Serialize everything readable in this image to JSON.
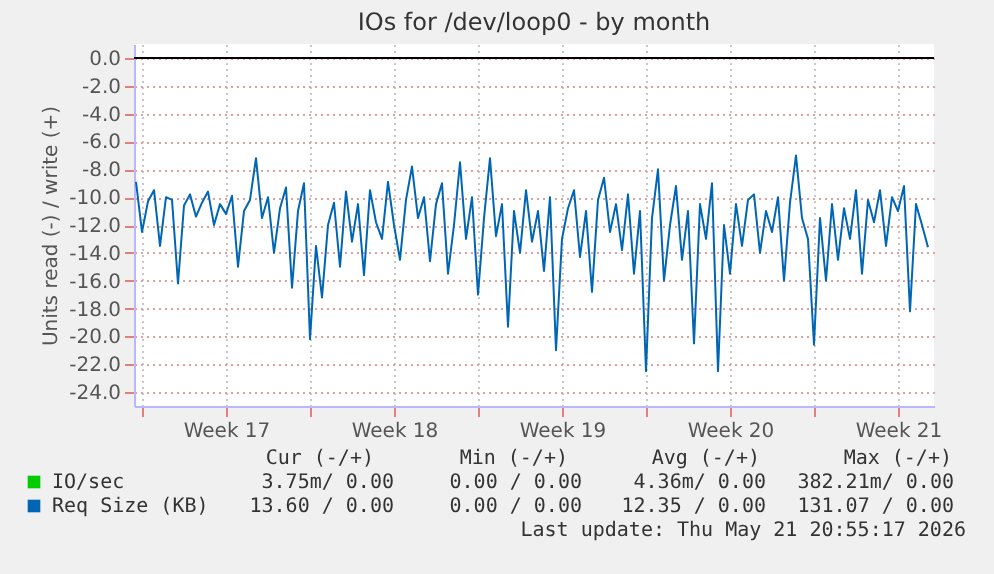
{
  "chart_data": {
    "type": "line",
    "title": "IOs for /dev/loop0 - by month",
    "ylabel": "Units read (-) / write (+)",
    "x": [
      "2026-04-18T15:00",
      "2026-04-18T21:00",
      "2026-04-19T03:00",
      "2026-04-19T09:00",
      "2026-04-19T15:00",
      "2026-04-19T21:00",
      "2026-04-20T03:00",
      "2026-04-20T09:00",
      "2026-04-20T15:00",
      "2026-04-20T21:00",
      "2026-04-21T03:00",
      "2026-04-21T09:00",
      "2026-04-21T15:00",
      "2026-04-21T21:00",
      "2026-04-22T03:00",
      "2026-04-22T09:00",
      "2026-04-22T15:00",
      "2026-04-22T21:00",
      "2026-04-23T03:00",
      "2026-04-23T09:00",
      "2026-04-23T15:00",
      "2026-04-23T21:00",
      "2026-04-24T03:00",
      "2026-04-24T09:00",
      "2026-04-24T15:00",
      "2026-04-24T21:00",
      "2026-04-25T03:00",
      "2026-04-25T09:00",
      "2026-04-25T15:00",
      "2026-04-25T21:00",
      "2026-04-26T03:00",
      "2026-04-26T09:00",
      "2026-04-26T15:00",
      "2026-04-26T21:00",
      "2026-04-27T03:00",
      "2026-04-27T09:00",
      "2026-04-27T15:00",
      "2026-04-27T21:00",
      "2026-04-28T03:00",
      "2026-04-28T09:00",
      "2026-04-28T15:00",
      "2026-04-28T21:00",
      "2026-04-29T03:00",
      "2026-04-29T09:00",
      "2026-04-29T15:00",
      "2026-04-29T21:00",
      "2026-04-30T03:00",
      "2026-04-30T09:00",
      "2026-04-30T15:00",
      "2026-04-30T21:00",
      "2026-05-01T03:00",
      "2026-05-01T09:00",
      "2026-05-01T15:00",
      "2026-05-01T21:00",
      "2026-05-02T03:00",
      "2026-05-02T09:00",
      "2026-05-02T15:00",
      "2026-05-02T21:00",
      "2026-05-03T03:00",
      "2026-05-03T09:00",
      "2026-05-03T15:00",
      "2026-05-03T21:00",
      "2026-05-04T03:00",
      "2026-05-04T09:00",
      "2026-05-04T15:00",
      "2026-05-04T21:00",
      "2026-05-05T03:00",
      "2026-05-05T09:00",
      "2026-05-05T15:00",
      "2026-05-05T21:00",
      "2026-05-06T03:00",
      "2026-05-06T09:00",
      "2026-05-06T15:00",
      "2026-05-06T21:00",
      "2026-05-07T03:00",
      "2026-05-07T09:00",
      "2026-05-07T15:00",
      "2026-05-07T21:00",
      "2026-05-08T03:00",
      "2026-05-08T09:00",
      "2026-05-08T15:00",
      "2026-05-08T21:00",
      "2026-05-09T03:00",
      "2026-05-09T09:00",
      "2026-05-09T15:00",
      "2026-05-09T21:00",
      "2026-05-10T03:00",
      "2026-05-10T09:00",
      "2026-05-10T15:00",
      "2026-05-10T21:00",
      "2026-05-11T03:00",
      "2026-05-11T09:00",
      "2026-05-11T15:00",
      "2026-05-11T21:00",
      "2026-05-12T03:00",
      "2026-05-12T09:00",
      "2026-05-12T15:00",
      "2026-05-12T21:00",
      "2026-05-13T03:00",
      "2026-05-13T09:00",
      "2026-05-13T15:00",
      "2026-05-13T21:00",
      "2026-05-14T03:00",
      "2026-05-14T09:00",
      "2026-05-14T15:00",
      "2026-05-14T21:00",
      "2026-05-15T03:00",
      "2026-05-15T09:00",
      "2026-05-15T15:00",
      "2026-05-15T21:00",
      "2026-05-16T03:00",
      "2026-05-16T09:00",
      "2026-05-16T15:00",
      "2026-05-16T21:00",
      "2026-05-17T03:00",
      "2026-05-17T09:00",
      "2026-05-17T15:00",
      "2026-05-17T21:00",
      "2026-05-18T03:00",
      "2026-05-18T09:00",
      "2026-05-18T15:00",
      "2026-05-18T21:00",
      "2026-05-19T03:00",
      "2026-05-19T09:00",
      "2026-05-19T15:00",
      "2026-05-19T21:00",
      "2026-05-20T03:00",
      "2026-05-20T09:00",
      "2026-05-20T15:00",
      "2026-05-20T21:00",
      "2026-05-21T03:00",
      "2026-05-21T09:00",
      "2026-05-21T15:00"
    ],
    "series": [
      {
        "name": "IO/sec",
        "color": "#00cc00",
        "values": [
          null,
          null,
          null,
          null,
          null,
          null,
          null,
          null,
          null,
          null,
          null,
          null,
          null,
          null,
          null,
          null,
          null,
          null,
          null,
          null,
          null,
          null,
          null,
          null,
          null,
          null,
          null,
          null,
          null,
          null,
          null,
          null,
          null,
          null,
          null,
          null,
          null,
          null,
          null,
          null,
          null,
          null,
          null,
          null,
          null,
          null,
          null,
          null,
          null,
          null,
          null,
          null,
          null,
          null,
          null,
          null,
          null,
          null,
          null,
          null,
          null,
          null,
          null,
          null,
          null,
          null,
          null,
          null,
          null,
          null,
          null,
          null,
          null,
          null,
          null,
          null,
          null,
          null,
          null,
          null,
          null,
          null,
          null,
          null,
          null,
          null,
          null,
          null,
          null,
          null,
          null,
          null,
          null,
          null,
          null,
          null,
          null,
          null,
          null,
          null,
          null,
          null,
          null,
          null,
          null,
          null,
          null,
          null,
          null,
          null,
          null,
          null,
          null,
          null,
          null,
          null,
          null,
          null,
          null,
          null,
          null,
          null,
          null,
          null,
          null,
          null,
          null,
          null,
          null,
          null,
          null,
          null,
          null
        ]
      },
      {
        "name": "Req Size (KB)",
        "color": "#0066b3",
        "values": [
          -8.9,
          -12.5,
          -10.3,
          -9.5,
          -13.5,
          -10.0,
          -10.2,
          -16.2,
          -10.6,
          -9.8,
          -11.4,
          -10.4,
          -9.6,
          -12.0,
          -10.5,
          -11.2,
          -9.9,
          -15.0,
          -11.0,
          -10.2,
          -7.2,
          -11.5,
          -10.0,
          -14.0,
          -10.8,
          -9.3,
          -16.5,
          -11.0,
          -9.0,
          -20.2,
          -13.5,
          -17.2,
          -12.0,
          -10.4,
          -15.0,
          -9.6,
          -13.2,
          -10.5,
          -15.6,
          -9.5,
          -11.8,
          -13.0,
          -8.9,
          -12.0,
          -14.5,
          -10.2,
          -7.8,
          -11.5,
          -10.0,
          -14.6,
          -10.5,
          -9.0,
          -15.5,
          -12.0,
          -7.5,
          -13.0,
          -10.0,
          -17.0,
          -11.5,
          -7.2,
          -12.8,
          -10.5,
          -19.3,
          -11.0,
          -14.0,
          -9.5,
          -13.2,
          -11.0,
          -15.3,
          -10.0,
          -21.0,
          -13.0,
          -10.8,
          -9.5,
          -14.3,
          -11.0,
          -16.8,
          -10.2,
          -8.6,
          -12.5,
          -10.5,
          -13.8,
          -9.8,
          -15.5,
          -11.0,
          -22.5,
          -11.5,
          -8.0,
          -16.0,
          -12.0,
          -9.2,
          -14.5,
          -11.0,
          -20.5,
          -10.5,
          -13.0,
          -9.0,
          -22.5,
          -12.0,
          -15.5,
          -10.5,
          -13.5,
          -10.2,
          -9.8,
          -14.0,
          -11.0,
          -12.5,
          -10.0,
          -16.0,
          -10.4,
          -7.0,
          -11.5,
          -13.0,
          -20.6,
          -11.5,
          -16.0,
          -10.5,
          -14.5,
          -10.8,
          -13.0,
          -9.5,
          -15.5,
          -10.2,
          -11.8,
          -9.5,
          -13.5,
          -10.0,
          -11.0,
          -9.2,
          -18.2,
          -10.5,
          -12.0,
          -13.6
        ]
      }
    ],
    "xlim": [
      "2026-04-18T13:00",
      "2026-05-21T21:00"
    ],
    "xticks": [
      {
        "value": "2026-04-18T21:00",
        "label": null
      },
      {
        "value": "2026-04-22T09:00",
        "label": "Week 17"
      },
      {
        "value": "2026-04-25T21:00",
        "label": null
      },
      {
        "value": "2026-04-29T09:00",
        "label": "Week 18"
      },
      {
        "value": "2026-05-02T21:00",
        "label": null
      },
      {
        "value": "2026-05-06T09:00",
        "label": "Week 19"
      },
      {
        "value": "2026-05-09T21:00",
        "label": null
      },
      {
        "value": "2026-05-13T09:00",
        "label": "Week 20"
      },
      {
        "value": "2026-05-16T21:00",
        "label": null
      },
      {
        "value": "2026-05-20T09:00",
        "label": "Week 21"
      }
    ],
    "ylim": [
      -25,
      1
    ],
    "yticks": [
      {
        "value": 0,
        "label": "0.0"
      },
      {
        "value": -2,
        "label": "-2.0"
      },
      {
        "value": -4,
        "label": "-4.0"
      },
      {
        "value": -6,
        "label": "-6.0"
      },
      {
        "value": -8,
        "label": "-8.0"
      },
      {
        "value": -10,
        "label": "-10.0"
      },
      {
        "value": -12,
        "label": "-12.0"
      },
      {
        "value": -14,
        "label": "-14.0"
      },
      {
        "value": -16,
        "label": "-16.0"
      },
      {
        "value": -18,
        "label": "-18.0"
      },
      {
        "value": -20,
        "label": "-20.0"
      },
      {
        "value": -22,
        "label": "-22.0"
      },
      {
        "value": -24,
        "label": "-24.0"
      }
    ],
    "ref_lines": [
      {
        "axis": "y",
        "value": 0,
        "label": null,
        "color": "#000000"
      }
    ],
    "grid": true,
    "legend": "bottom",
    "annotations": [
      "Cur (-/+)",
      "Min (-/+)",
      "Avg (-/+)",
      "Max (-/+)",
      "3.75m/ 0.00",
      "0.00 / 0.00",
      "4.36m/ 0.00",
      "382.21m/ 0.00",
      "13.60 / 0.00",
      "0.00 / 0.00",
      "12.35 / 0.00",
      "131.07 / 0.00",
      "Last update: Thu May 21 20:55:17 2026"
    ]
  }
}
